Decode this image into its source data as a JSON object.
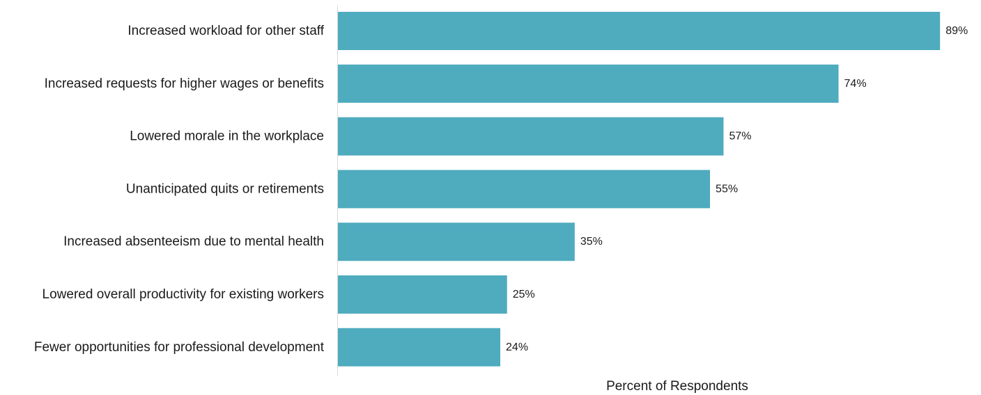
{
  "chart_data": {
    "type": "bar",
    "orientation": "horizontal",
    "categories": [
      "Increased workload for other staff",
      "Increased requests for higher wages or benefits",
      "Lowered morale in the workplace",
      "Unanticipated quits or retirements",
      "Increased absenteeism due to mental health",
      "Lowered overall productivity for existing workers",
      "Fewer opportunities for professional development"
    ],
    "values": [
      89,
      74,
      57,
      55,
      35,
      25,
      24
    ],
    "value_labels": [
      "89%",
      "74%",
      "57%",
      "55%",
      "35%",
      "25%",
      "24%"
    ],
    "xlabel": "Percent of Respondents",
    "ylabel": "",
    "title": "",
    "xlim": [
      0,
      100
    ],
    "grid": false,
    "legend": "none",
    "bar_color": "#4FABBE"
  }
}
